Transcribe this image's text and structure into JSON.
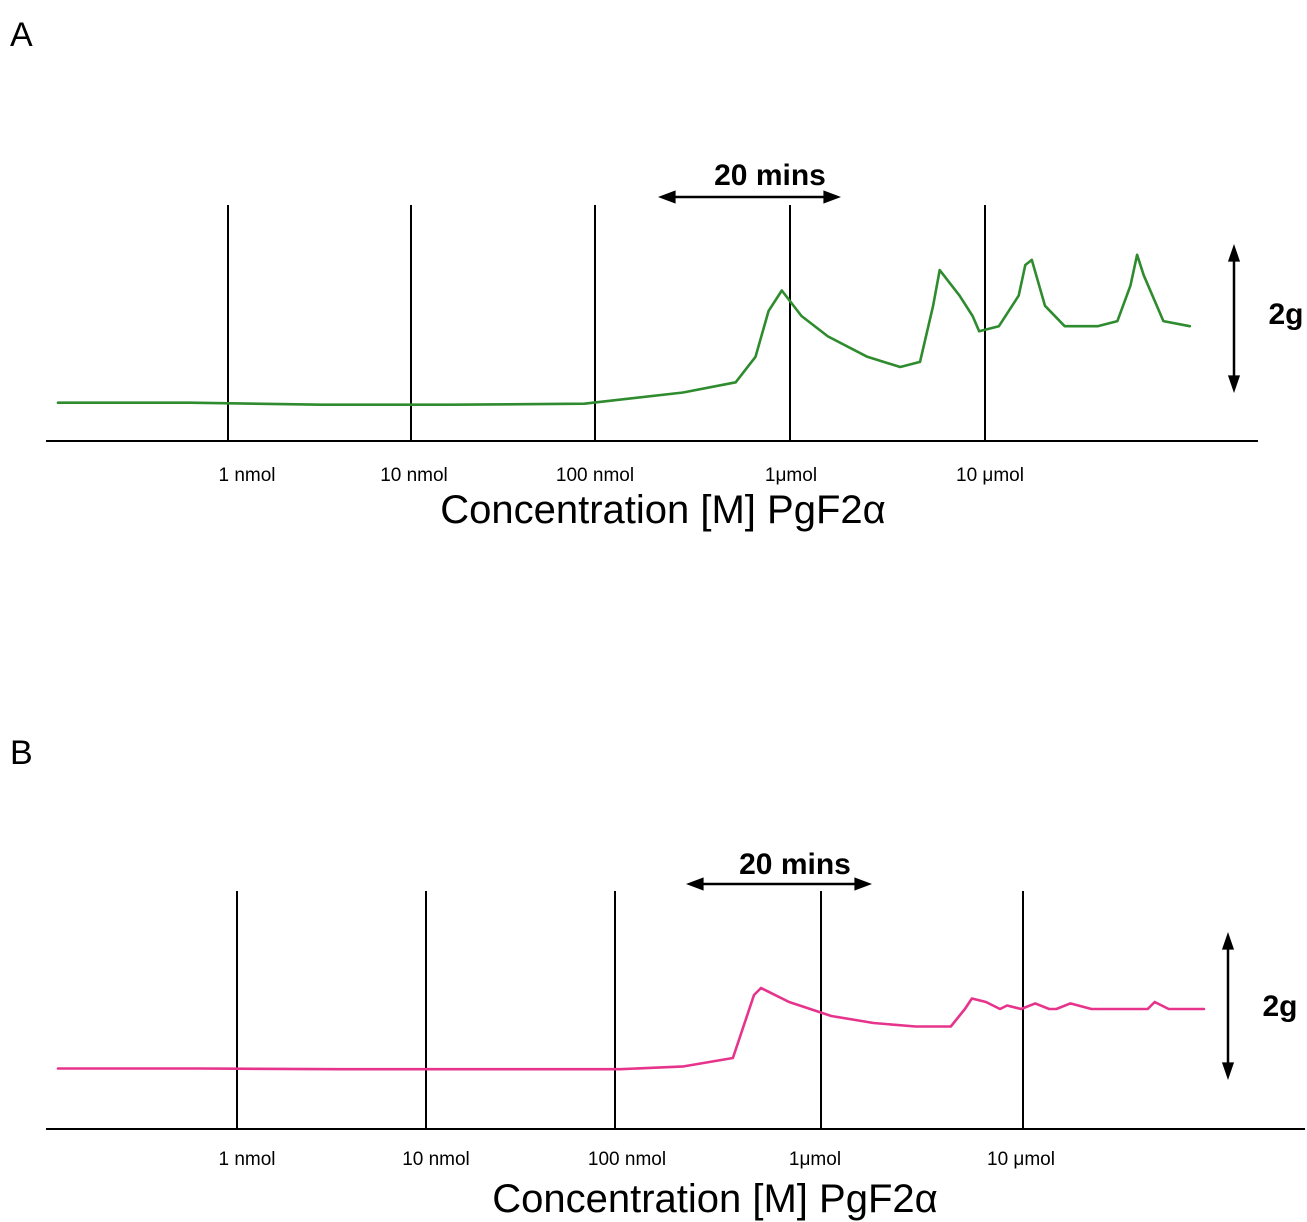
{
  "chart_data": [
    {
      "panel": "A",
      "type": "line",
      "xlabel": "Concentration [M] PgF2α",
      "markers": [
        "1 nmol",
        "10 nmol",
        "100 nmol",
        "1μmol",
        "10 μmol"
      ],
      "time_bar_label": "20 mins",
      "scale_bar_label": "2g",
      "series": [
        {
          "color": "#2e8b2e",
          "x_minutes": [
            0,
            20,
            40,
            60,
            80,
            95,
            103,
            106,
            108,
            110,
            113,
            117,
            123,
            128,
            131,
            133,
            134,
            137,
            139,
            140,
            143,
            146,
            147,
            148,
            150,
            153,
            155,
            158,
            161,
            163,
            164,
            165,
            168,
            172
          ],
          "y_g": [
            0.15,
            0.15,
            0.13,
            0.13,
            0.14,
            0.25,
            0.35,
            0.6,
            1.05,
            1.25,
            1.0,
            0.8,
            0.6,
            0.5,
            0.55,
            1.1,
            1.45,
            1.2,
            1.0,
            0.85,
            0.9,
            1.2,
            1.5,
            1.55,
            1.1,
            0.9,
            0.9,
            0.9,
            0.95,
            1.3,
            1.6,
            1.4,
            0.95,
            0.9
          ]
        }
      ]
    },
    {
      "panel": "B",
      "type": "line",
      "xlabel": "Concentration [M] PgF2α",
      "markers": [
        "1 nmol",
        "10 nmol",
        "100 nmol",
        "1μmol",
        "10 μmol"
      ],
      "time_bar_label": "20 mins",
      "scale_bar_label": "2g",
      "series": [
        {
          "color": "#e6348c",
          "x_minutes": [
            0,
            20,
            40,
            60,
            80,
            89,
            96,
            99,
            100,
            104,
            110,
            116,
            122,
            127,
            129,
            130,
            132,
            134,
            135,
            137,
            139,
            141,
            142,
            144,
            147,
            148,
            150,
            155,
            156,
            158,
            163
          ],
          "y_g": [
            0.35,
            0.35,
            0.34,
            0.34,
            0.34,
            0.38,
            0.5,
            1.4,
            1.5,
            1.3,
            1.1,
            1.0,
            0.95,
            0.95,
            1.2,
            1.35,
            1.3,
            1.2,
            1.25,
            1.2,
            1.28,
            1.2,
            1.2,
            1.28,
            1.2,
            1.2,
            1.2,
            1.2,
            1.3,
            1.2,
            1.2
          ]
        }
      ]
    }
  ],
  "panels": [
    {
      "letter": "A"
    },
    {
      "letter": "B"
    }
  ]
}
